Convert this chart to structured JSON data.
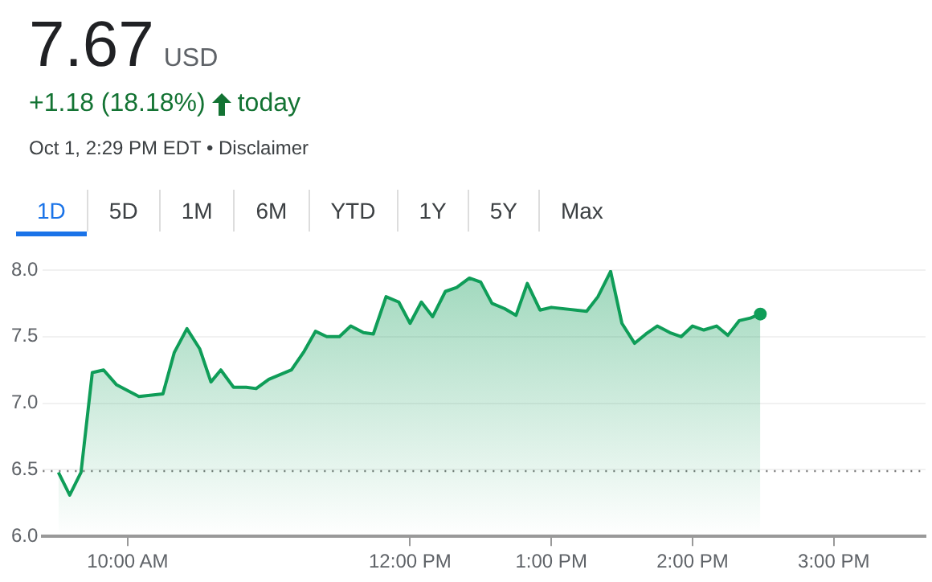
{
  "chart_data": {
    "type": "area",
    "title": "7.67",
    "subtitle": "USD",
    "annotations": [
      "+1.18 (18.18%)",
      "today",
      "Oct 1, 2:29 PM EDT • Disclaimer",
      "1D",
      "5D",
      "1M",
      "6M",
      "YTD",
      "1Y",
      "5Y",
      "Max"
    ],
    "x": [
      9.51,
      9.59,
      9.67,
      9.75,
      9.83,
      9.92,
      10.08,
      10.25,
      10.33,
      10.42,
      10.51,
      10.59,
      10.66,
      10.75,
      10.84,
      10.91,
      11.0,
      11.16,
      11.25,
      11.33,
      11.41,
      11.5,
      11.58,
      11.67,
      11.74,
      11.83,
      11.92,
      12.0,
      12.08,
      12.16,
      12.25,
      12.33,
      12.42,
      12.5,
      12.58,
      12.67,
      12.75,
      12.83,
      12.92,
      13.0,
      13.25,
      13.33,
      13.42,
      13.5,
      13.59,
      13.67,
      13.75,
      13.84,
      13.92,
      14.0,
      14.08,
      14.17,
      14.25,
      14.33,
      14.41,
      14.48
    ],
    "series": [
      {
        "color": "#0f9d58",
        "values": [
          6.48,
          6.31,
          6.48,
          7.23,
          7.25,
          7.14,
          7.05,
          7.07,
          7.38,
          7.56,
          7.41,
          7.16,
          7.25,
          7.12,
          7.12,
          7.11,
          7.18,
          7.25,
          7.39,
          7.54,
          7.5,
          7.5,
          7.58,
          7.53,
          7.52,
          7.8,
          7.76,
          7.6,
          7.76,
          7.65,
          7.84,
          7.87,
          7.94,
          7.91,
          7.75,
          7.71,
          7.66,
          7.9,
          7.7,
          7.72,
          7.69,
          7.8,
          7.99,
          7.6,
          7.45,
          7.52,
          7.58,
          7.53,
          7.5,
          7.58,
          7.55,
          7.58,
          7.51,
          7.62,
          7.64,
          7.67
        ]
      }
    ],
    "xlim": [
      9.4,
      15.65
    ],
    "xticks": [
      {
        "value": 10,
        "label": "10:00 AM"
      },
      {
        "value": 12,
        "label": "12:00 PM"
      },
      {
        "value": 13,
        "label": "1:00 PM"
      },
      {
        "value": 14,
        "label": "2:00 PM"
      },
      {
        "value": 15,
        "label": "3:00 PM"
      }
    ],
    "ylim": [
      6,
      8
    ],
    "yticks": [
      {
        "value": 6,
        "label": "6.0"
      },
      {
        "value": 6.5,
        "label": "6.5"
      },
      {
        "value": 7,
        "label": "7.0"
      },
      {
        "value": 7.5,
        "label": "7.5"
      },
      {
        "value": 8,
        "label": "8.0"
      }
    ],
    "ref_lines": [
      {
        "axis": "y",
        "value": 6.49,
        "line_style": "dotted",
        "color": "#777777"
      }
    ],
    "grid": "y",
    "legend": false,
    "line_style": "solid"
  }
}
